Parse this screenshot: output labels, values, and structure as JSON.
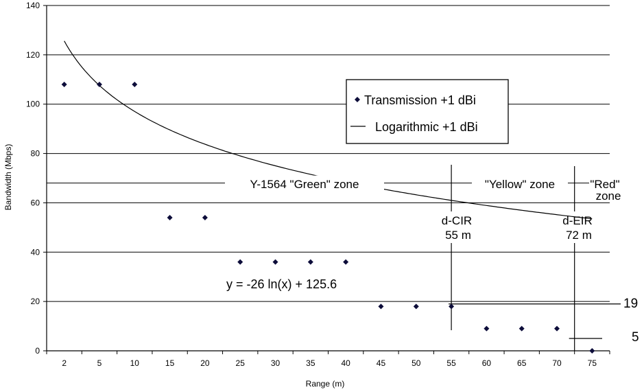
{
  "chart_data": {
    "type": "scatter",
    "title": "",
    "xlabel": "Range (m)",
    "ylabel": "Bandwidth (Mbps)",
    "categories": [
      "2",
      "5",
      "10",
      "15",
      "20",
      "25",
      "30",
      "35",
      "40",
      "45",
      "50",
      "55",
      "60",
      "65",
      "70",
      "75"
    ],
    "ylim": [
      0,
      140
    ],
    "yticks": [
      "0",
      "20",
      "40",
      "60",
      "80",
      "100",
      "120",
      "140"
    ],
    "grid": true,
    "legend_position": "top-right",
    "series": [
      {
        "name": "Transmission +1 dBi",
        "kind": "points",
        "color": "#0d0d3a",
        "values": [
          108,
          108,
          108,
          54,
          54,
          36,
          36,
          36,
          36,
          18,
          18,
          18,
          9,
          9,
          9,
          0
        ]
      },
      {
        "name": "Logarithmic +1 dBi",
        "kind": "trendline",
        "color": "#000000",
        "equation": "y = -26 ln(x) + 125.6",
        "a": -26,
        "b": 125.6
      }
    ],
    "zone_threshold": 68,
    "zones": [
      {
        "label": "Y-1564 \"Green\" zone"
      },
      {
        "label": "\"Yellow\" zone"
      },
      {
        "label_line1": "\"Red\"",
        "label_line2": "zone"
      }
    ],
    "markers": [
      {
        "name": "d-CIR",
        "distance": "55 m",
        "category_index": 11
      },
      {
        "name": "d-EIR",
        "distance": "72 m",
        "category_position": 14.5
      }
    ],
    "reference_levels": [
      {
        "value": 19,
        "label": "19"
      },
      {
        "value": 5,
        "label": "5"
      }
    ]
  }
}
